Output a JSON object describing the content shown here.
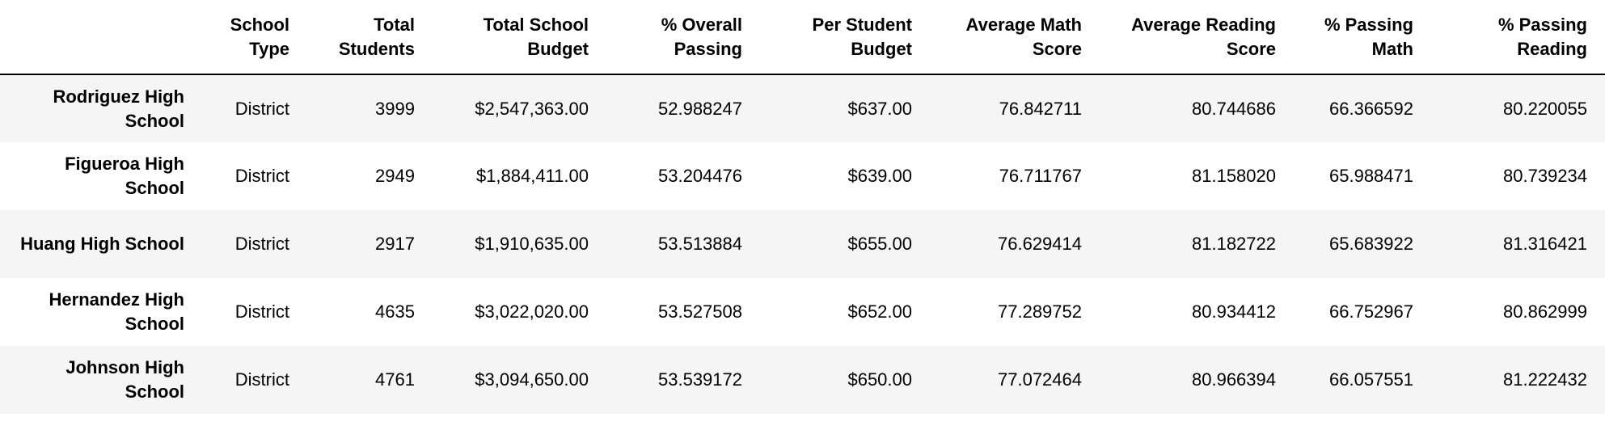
{
  "table": {
    "columns": [
      "School Type",
      "Total Students",
      "Total School Budget",
      "% Overall Passing",
      "Per Student Budget",
      "Average Math Score",
      "Average Reading Score",
      "% Passing Math",
      "% Passing Reading"
    ],
    "rows": [
      {
        "school": "Rodriguez High School",
        "cells": [
          "District",
          "3999",
          "$2,547,363.00",
          "52.988247",
          "$637.00",
          "76.842711",
          "80.744686",
          "66.366592",
          "80.220055"
        ]
      },
      {
        "school": "Figueroa High School",
        "cells": [
          "District",
          "2949",
          "$1,884,411.00",
          "53.204476",
          "$639.00",
          "76.711767",
          "81.158020",
          "65.988471",
          "80.739234"
        ]
      },
      {
        "school": "Huang High School",
        "cells": [
          "District",
          "2917",
          "$1,910,635.00",
          "53.513884",
          "$655.00",
          "76.629414",
          "81.182722",
          "65.683922",
          "81.316421"
        ]
      },
      {
        "school": "Hernandez High School",
        "cells": [
          "District",
          "4635",
          "$3,022,020.00",
          "53.527508",
          "$652.00",
          "77.289752",
          "80.934412",
          "66.752967",
          "80.862999"
        ]
      },
      {
        "school": "Johnson High School",
        "cells": [
          "District",
          "4761",
          "$3,094,650.00",
          "53.539172",
          "$650.00",
          "77.072464",
          "80.966394",
          "66.057551",
          "81.222432"
        ]
      }
    ]
  }
}
